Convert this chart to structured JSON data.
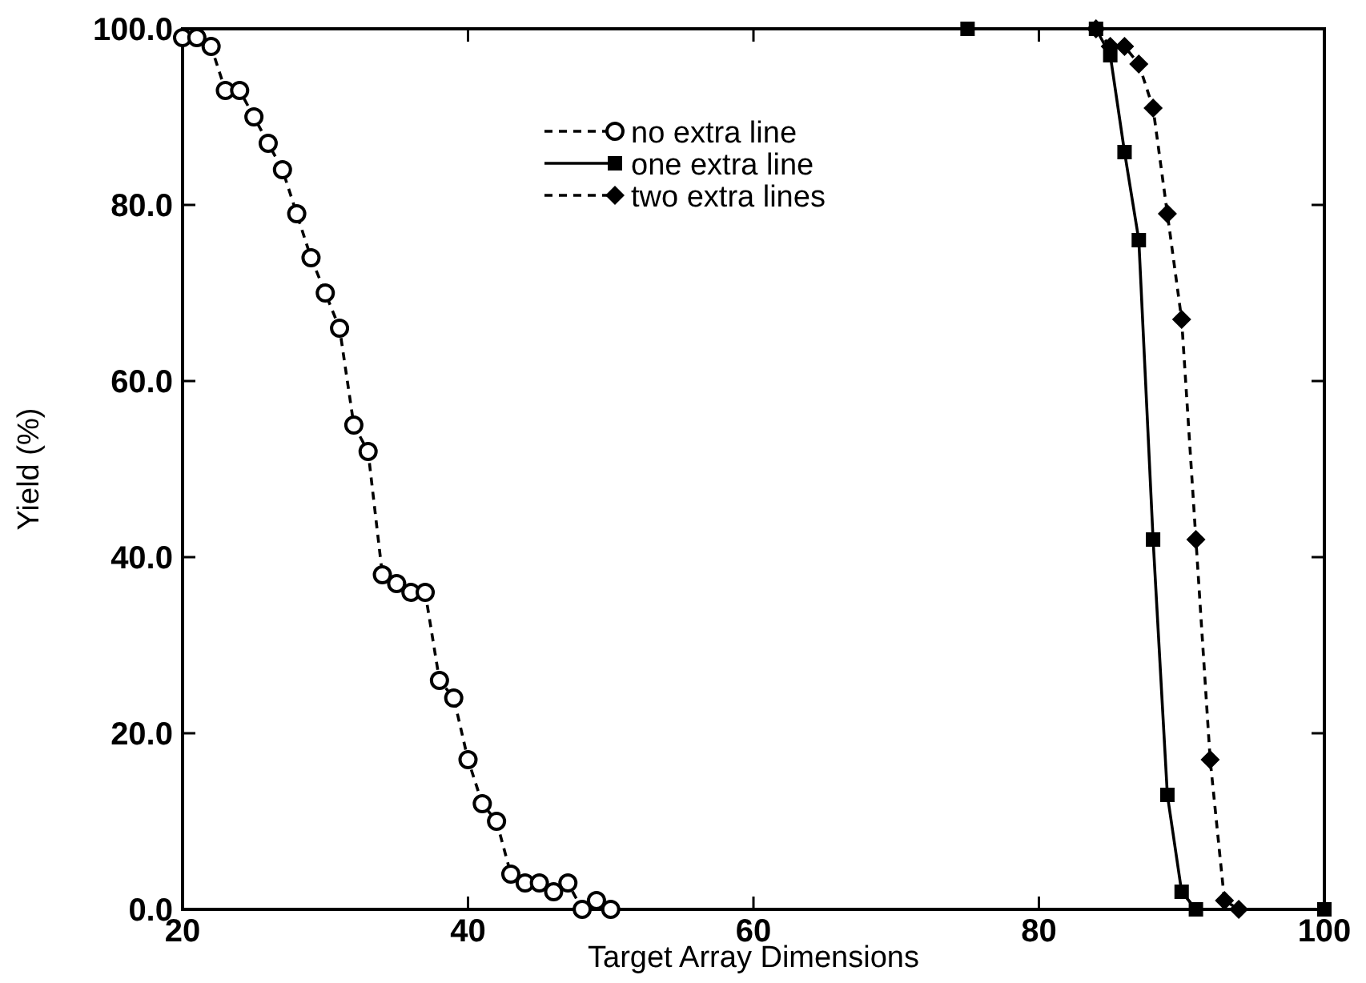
{
  "chart_data": {
    "type": "line",
    "xlabel": "Target Array Dimensions",
    "ylabel": "Yield (%)",
    "xlim": [
      20,
      100
    ],
    "ylim": [
      0,
      100
    ],
    "xticks": [
      20,
      40,
      60,
      80,
      100
    ],
    "yticks": [
      {
        "value": 0,
        "label": "0.0"
      },
      {
        "value": 20,
        "label": "20.0"
      },
      {
        "value": 40,
        "label": "40.0"
      },
      {
        "value": 60,
        "label": "60.0"
      },
      {
        "value": 80,
        "label": "80.0"
      },
      {
        "value": 100,
        "label": "100.0"
      }
    ],
    "legend": "top",
    "grid": false,
    "series": [
      {
        "name": "no extra line",
        "color": "#000000",
        "marker": "circle",
        "line_style": "dashed",
        "x": [
          20,
          21,
          22,
          23,
          24,
          25,
          26,
          27,
          28,
          29,
          30,
          31,
          32,
          33,
          34,
          35,
          36,
          37,
          38,
          39,
          40,
          41,
          42,
          43,
          44,
          45,
          46,
          47,
          48,
          49,
          50
        ],
        "values": [
          99,
          99,
          98,
          93,
          93,
          90,
          87,
          84,
          79,
          74,
          70,
          66,
          55,
          52,
          38,
          37,
          36,
          36,
          26,
          24,
          17,
          12,
          10,
          4,
          3,
          3,
          2,
          3,
          0,
          1,
          0
        ]
      },
      {
        "name": "one extra line",
        "color": "#000000",
        "marker": "square",
        "line_style": "solid",
        "x": [
          75,
          84,
          85,
          86,
          87,
          88,
          89,
          90,
          91,
          100
        ],
        "values": [
          100,
          100,
          97,
          86,
          76,
          42,
          13,
          2,
          0,
          0
        ]
      },
      {
        "name": "two extra lines",
        "color": "#000000",
        "marker": "diamond",
        "line_style": "dashed",
        "x": [
          84,
          85,
          86,
          87,
          88,
          89,
          90,
          91,
          92,
          93,
          94
        ],
        "values": [
          100,
          98,
          98,
          96,
          91,
          79,
          67,
          42,
          17,
          1,
          0
        ]
      }
    ]
  }
}
